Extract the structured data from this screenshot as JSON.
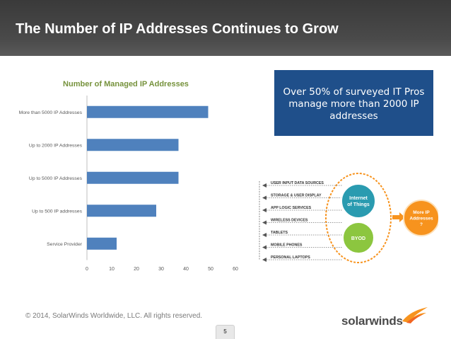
{
  "header": {
    "title": "The Number of IP Addresses Continues to Grow"
  },
  "chart_data": {
    "type": "bar",
    "orientation": "horizontal",
    "title": "Number of Managed IP Addresses",
    "categories": [
      "More than 5000 IP Addresses",
      "Up to 2000 IP Addresses",
      "Up to 5000 IP Addresses",
      "Up to 500 IP addresses",
      "Service Provider"
    ],
    "values": [
      49,
      37,
      37,
      28,
      12
    ],
    "xlim": [
      0,
      60
    ],
    "xticks": [
      "0",
      "10",
      "20",
      "30",
      "40",
      "50",
      "60"
    ],
    "grid": false,
    "legend": "none",
    "bar_color": "#4f81bd",
    "title_color": "#76923c"
  },
  "callout": {
    "text": "Over 50% of surveyed IT Pros manage more than 2000 IP addresses"
  },
  "diagram": {
    "sources": [
      "USER INPUT DATA SOURCES",
      "STORAGE & USER DISPLAY",
      "APP LOGIC SERVICES",
      "WIRELESS DEVICES",
      "TABLETS",
      "MOBILE PHONES",
      "PERSONAL LAPTOPS"
    ],
    "circle_top": [
      "Internet",
      "of Things"
    ],
    "circle_bottom": "BYOD",
    "result": [
      "More IP",
      "Addresses",
      "?"
    ],
    "colors": {
      "teal": "#2a9bb0",
      "green": "#8cc63f",
      "orange": "#f7931e"
    }
  },
  "footer": {
    "copyright": "© 2014, SolarWinds Worldwide, LLC.  All rights reserved.",
    "page_number": "5",
    "brand": "solarwinds"
  }
}
